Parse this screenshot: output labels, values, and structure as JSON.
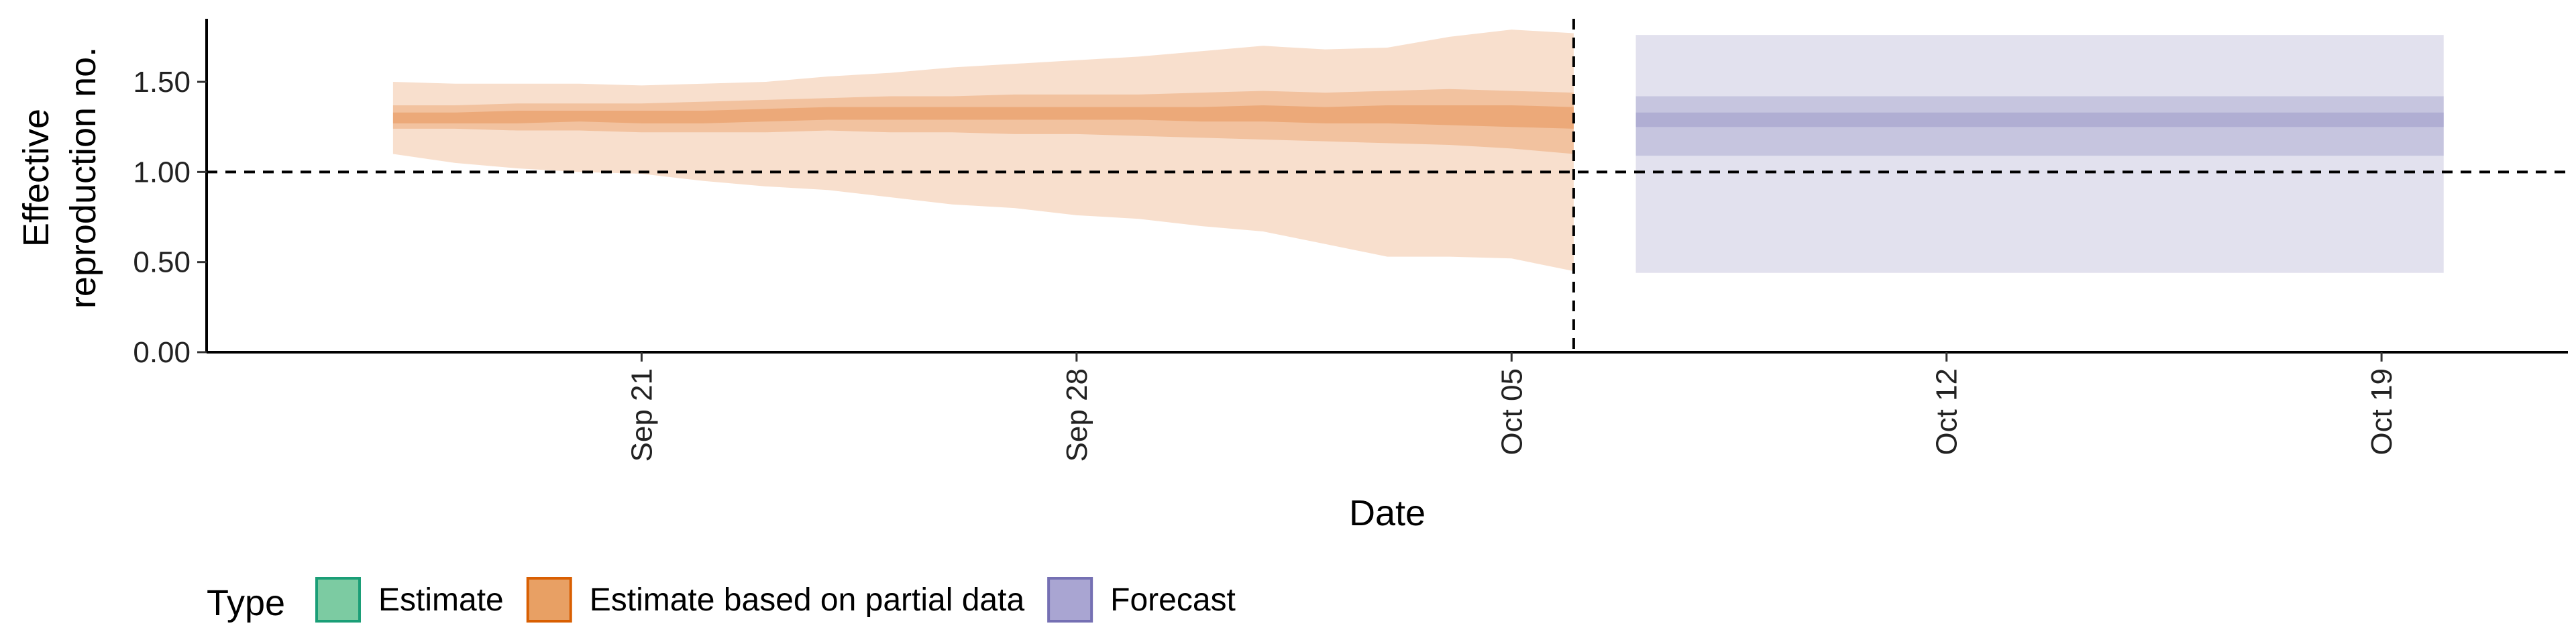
{
  "chart_data": {
    "type": "area",
    "xlabel": "Date",
    "ylabel": [
      "Effective",
      "reproduction no."
    ],
    "ylim": [
      0,
      1.85
    ],
    "y_ticks": [
      0.0,
      0.5,
      1.0,
      1.5
    ],
    "y_tick_labels": [
      "0.00",
      "0.50",
      "1.00",
      "1.50"
    ],
    "x_range": [
      "2020-09-14",
      "2020-10-22"
    ],
    "x_ticks": [
      "2020-09-21",
      "2020-09-28",
      "2020-10-05",
      "2020-10-12",
      "2020-10-19"
    ],
    "x_tick_labels": [
      "Sep 21",
      "Sep 28",
      "Oct 05",
      "Oct 12",
      "Oct 19"
    ],
    "reference_line_y": 1.0,
    "forecast_start_line_x": "2020-10-06",
    "grid": false,
    "series": [
      {
        "name": "Estimate based on partial data",
        "color": "#e8955a",
        "x": [
          "2020-09-17",
          "2020-09-18",
          "2020-09-19",
          "2020-09-20",
          "2020-09-21",
          "2020-09-22",
          "2020-09-23",
          "2020-09-24",
          "2020-09-25",
          "2020-09-26",
          "2020-09-27",
          "2020-09-28",
          "2020-09-29",
          "2020-09-30",
          "2020-10-01",
          "2020-10-02",
          "2020-10-03",
          "2020-10-04",
          "2020-10-05",
          "2020-10-06"
        ],
        "median": [
          1.29,
          1.3,
          1.3,
          1.31,
          1.3,
          1.3,
          1.31,
          1.32,
          1.32,
          1.32,
          1.32,
          1.32,
          1.32,
          1.32,
          1.32,
          1.31,
          1.32,
          1.31,
          1.31,
          1.3
        ],
        "lower_20": [
          1.27,
          1.27,
          1.27,
          1.28,
          1.27,
          1.27,
          1.28,
          1.29,
          1.29,
          1.29,
          1.29,
          1.29,
          1.29,
          1.28,
          1.28,
          1.27,
          1.27,
          1.26,
          1.25,
          1.24
        ],
        "upper_20": [
          1.33,
          1.33,
          1.34,
          1.34,
          1.34,
          1.34,
          1.35,
          1.36,
          1.36,
          1.36,
          1.36,
          1.36,
          1.36,
          1.36,
          1.37,
          1.36,
          1.37,
          1.37,
          1.37,
          1.36
        ],
        "lower_50": [
          1.24,
          1.24,
          1.23,
          1.23,
          1.22,
          1.22,
          1.22,
          1.23,
          1.22,
          1.22,
          1.21,
          1.21,
          1.2,
          1.19,
          1.18,
          1.17,
          1.16,
          1.15,
          1.13,
          1.1
        ],
        "upper_50": [
          1.37,
          1.37,
          1.38,
          1.38,
          1.38,
          1.39,
          1.4,
          1.41,
          1.42,
          1.42,
          1.43,
          1.43,
          1.43,
          1.44,
          1.45,
          1.44,
          1.45,
          1.46,
          1.45,
          1.44
        ],
        "lower_90": [
          1.1,
          1.05,
          1.02,
          1.0,
          0.99,
          0.95,
          0.92,
          0.9,
          0.86,
          0.82,
          0.8,
          0.76,
          0.74,
          0.7,
          0.67,
          0.6,
          0.53,
          0.53,
          0.52,
          0.45
        ],
        "upper_90": [
          1.5,
          1.49,
          1.49,
          1.49,
          1.48,
          1.49,
          1.5,
          1.53,
          1.55,
          1.58,
          1.6,
          1.62,
          1.64,
          1.67,
          1.7,
          1.68,
          1.69,
          1.75,
          1.79,
          1.77
        ]
      },
      {
        "name": "Forecast",
        "color": "#9e9ac8",
        "x": [
          "2020-10-07",
          "2020-10-20"
        ],
        "median": [
          1.29,
          1.29
        ],
        "lower_20": [
          1.25,
          1.25
        ],
        "upper_20": [
          1.33,
          1.33
        ],
        "lower_50": [
          1.09,
          1.09
        ],
        "upper_50": [
          1.42,
          1.42
        ],
        "lower_90": [
          0.44,
          0.44
        ],
        "upper_90": [
          1.76,
          1.76
        ]
      }
    ],
    "legend": {
      "title": "Type",
      "placement": "bottom-left",
      "items": [
        {
          "label": "Estimate",
          "fill": "#7ccba2",
          "stroke": "#1b9e77"
        },
        {
          "label": "Estimate based on partial data",
          "fill": "#e8a064",
          "stroke": "#d95f02"
        },
        {
          "label": "Forecast",
          "fill": "#a9a5d2",
          "stroke": "#7570b3"
        }
      ]
    }
  }
}
